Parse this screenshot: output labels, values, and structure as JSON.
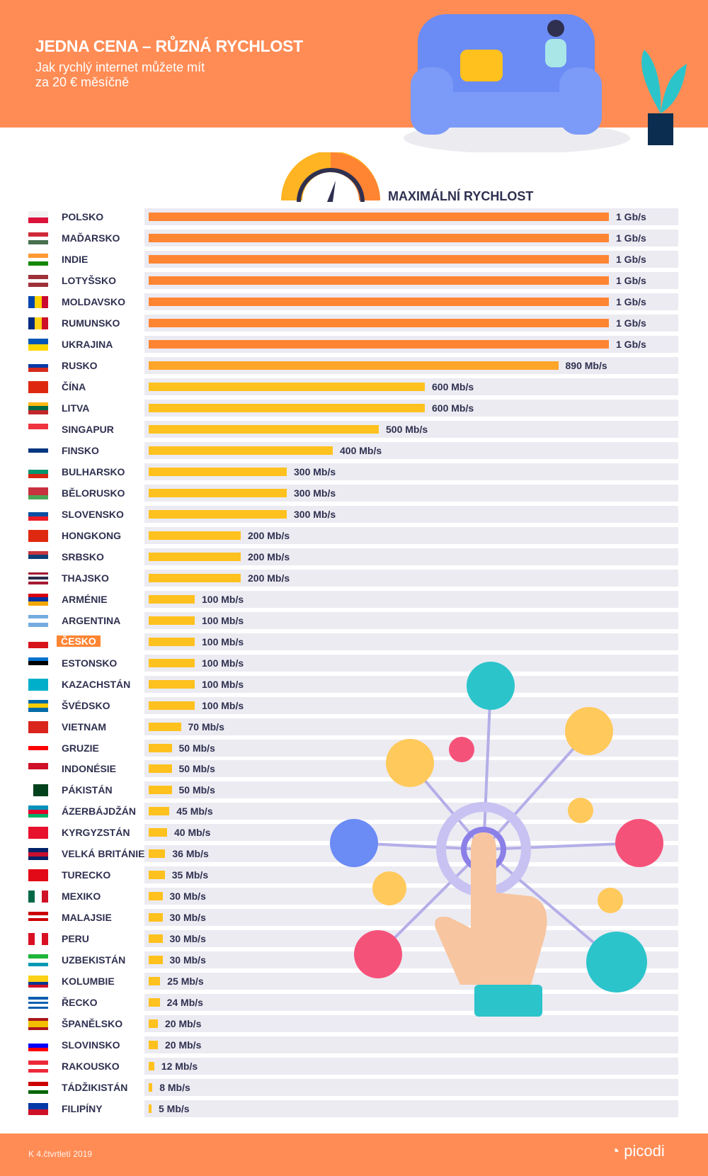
{
  "header": {
    "title": "JEDNA CENA – RŮZNÁ RYCHLOST",
    "subtitle_line1": "Jak rychlý internet můžete mít",
    "subtitle_line2": "za 20 € měsíčně"
  },
  "footer": {
    "period": "K 4.čtvrtletí 2019",
    "logo": "picodi"
  },
  "colors": {
    "header": "#FF8C55",
    "bar_max": "#FF8533",
    "bar": "#FFC11E",
    "track": "#ECEBF2",
    "text": "#2F3050"
  },
  "chart_data": {
    "type": "bar",
    "orientation": "horizontal",
    "title": "MAXIMÁLNÍ RYCHLOST",
    "unit": "Mb/s",
    "xlim": [
      0,
      1000
    ],
    "highlight": "ČESKO",
    "categories": [
      "POLSKO",
      "MAĎARSKO",
      "INDIE",
      "LOTYŠSKO",
      "MOLDAVSKO",
      "RUMUNSKO",
      "UKRAJINA",
      "RUSKO",
      "ČÍNA",
      "LITVA",
      "SINGAPUR",
      "FINSKO",
      "BULHARSKO",
      "BĚLORUSKO",
      "SLOVENSKO",
      "HONGKONG",
      "SRBSKO",
      "THAJSKO",
      "ARMÉNIE",
      "ARGENTINA",
      "ČESKO",
      "ESTONSKO",
      "KAZACHSTÁN",
      "ŠVÉDSKO",
      "VIETNAM",
      "GRUZIE",
      "INDONÉSIE",
      "PÁKISTÁN",
      "ÁZERBÁJDŽÁN",
      "KYRGYZSTÁN",
      "VELKÁ BRITÁNIE",
      "TURECKO",
      "MEXIKO",
      "MALAJSIE",
      "PERU",
      "UZBEKISTÁN",
      "KOLUMBIE",
      "ŘECKO",
      "ŠPANĚLSKO",
      "SLOVINSKO",
      "RAKOUSKO",
      "TÁDŽIKISTÁN",
      "FILIPÍNY"
    ],
    "values": [
      1000,
      1000,
      1000,
      1000,
      1000,
      1000,
      1000,
      890,
      600,
      600,
      500,
      400,
      300,
      300,
      300,
      200,
      200,
      200,
      100,
      100,
      100,
      100,
      100,
      100,
      70,
      50,
      50,
      50,
      45,
      40,
      36,
      35,
      30,
      30,
      30,
      30,
      25,
      24,
      20,
      20,
      12,
      8,
      5
    ],
    "labels": [
      "1 Gb/s",
      "1 Gb/s",
      "1 Gb/s",
      "1 Gb/s",
      "1 Gb/s",
      "1 Gb/s",
      "1 Gb/s",
      "890 Mb/s",
      "600 Mb/s",
      "600 Mb/s",
      "500 Mb/s",
      "400 Mb/s",
      "300 Mb/s",
      "300 Mb/s",
      "300 Mb/s",
      "200 Mb/s",
      "200 Mb/s",
      "200 Mb/s",
      "100 Mb/s",
      "100 Mb/s",
      "100 Mb/s",
      "100 Mb/s",
      "100 Mb/s",
      "100 Mb/s",
      "70 Mb/s",
      "50 Mb/s",
      "50 Mb/s",
      "50 Mb/s",
      "45 Mb/s",
      "40 Mb/s",
      "36 Mb/s",
      "35 Mb/s",
      "30 Mb/s",
      "30 Mb/s",
      "30 Mb/s",
      "30 Mb/s",
      "25 Mb/s",
      "24 Mb/s",
      "20 Mb/s",
      "20 Mb/s",
      "12 Mb/s",
      "8 Mb/s",
      "5 Mb/s"
    ],
    "flags": [
      [
        "h",
        "#f2f2f2",
        "#dc143c"
      ],
      [
        "h",
        "#ce2939",
        "#fff",
        "#477050"
      ],
      [
        "h",
        "#ff9933",
        "#fff",
        "#138808"
      ],
      [
        "h",
        "#9e3039",
        "#fff",
        "#9e3039"
      ],
      [
        "v",
        "#0046ae",
        "#ffd200",
        "#cc092f"
      ],
      [
        "v",
        "#002b7f",
        "#fcd116",
        "#ce1126"
      ],
      [
        "h",
        "#0057b7",
        "#ffd700"
      ],
      [
        "h",
        "#fff",
        "#0039a6",
        "#d52b1e"
      ],
      [
        "h",
        "#de2910"
      ],
      [
        "h",
        "#fdb913",
        "#006a44",
        "#c1272d"
      ],
      [
        "h",
        "#ef3340",
        "#fff"
      ],
      [
        "h",
        "#fff",
        "#003580",
        "#fff"
      ],
      [
        "h",
        "#fff",
        "#00966e",
        "#d62612"
      ],
      [
        "h",
        "#c8313e",
        "#c8313e",
        "#4aa657"
      ],
      [
        "h",
        "#fff",
        "#0b4ea2",
        "#ee1c25"
      ],
      [
        "h",
        "#de2910"
      ],
      [
        "h",
        "#c6363c",
        "#0c4076",
        "#fff"
      ],
      [
        "h",
        "#a51931",
        "#f4f5f8",
        "#2d2a4a",
        "#f4f5f8",
        "#a51931"
      ],
      [
        "h",
        "#d90012",
        "#0033a0",
        "#f2a800"
      ],
      [
        "h",
        "#74acdf",
        "#fff",
        "#74acdf"
      ],
      [
        "h",
        "#fff",
        "#d7141a"
      ],
      [
        "h",
        "#0072ce",
        "#000",
        "#fff"
      ],
      [
        "h",
        "#00afca"
      ],
      [
        "h",
        "#006aa7",
        "#fecc00",
        "#006aa7"
      ],
      [
        "h",
        "#da251d"
      ],
      [
        "h",
        "#fff",
        "#ff0000",
        "#fff"
      ],
      [
        "h",
        "#ce1126",
        "#fff"
      ],
      [
        "v",
        "#fff",
        "#01411c",
        "#01411c",
        "#01411c"
      ],
      [
        "h",
        "#0092bc",
        "#e4002b",
        "#00af66"
      ],
      [
        "h",
        "#e8112d"
      ],
      [
        "h",
        "#012169",
        "#c8102e",
        "#012169"
      ],
      [
        "h",
        "#e30a17"
      ],
      [
        "v",
        "#006847",
        "#fff",
        "#ce1126"
      ],
      [
        "h",
        "#cc0001",
        "#fff",
        "#cc0001",
        "#fff"
      ],
      [
        "v",
        "#d91023",
        "#fff",
        "#d91023"
      ],
      [
        "h",
        "#1eb53a",
        "#fff",
        "#0099b5"
      ],
      [
        "h",
        "#fcd116",
        "#fcd116",
        "#003893",
        "#ce1126"
      ],
      [
        "h",
        "#0d5eaf",
        "#fff",
        "#0d5eaf",
        "#fff",
        "#0d5eaf"
      ],
      [
        "h",
        "#aa151b",
        "#f1bf00",
        "#f1bf00",
        "#aa151b"
      ],
      [
        "h",
        "#fff",
        "#0000ff",
        "#ff0000"
      ],
      [
        "h",
        "#ed2939",
        "#fff",
        "#ed2939"
      ],
      [
        "h",
        "#cc0000",
        "#fff",
        "#006600"
      ],
      [
        "h",
        "#0038a8",
        "#ce1126"
      ]
    ]
  }
}
